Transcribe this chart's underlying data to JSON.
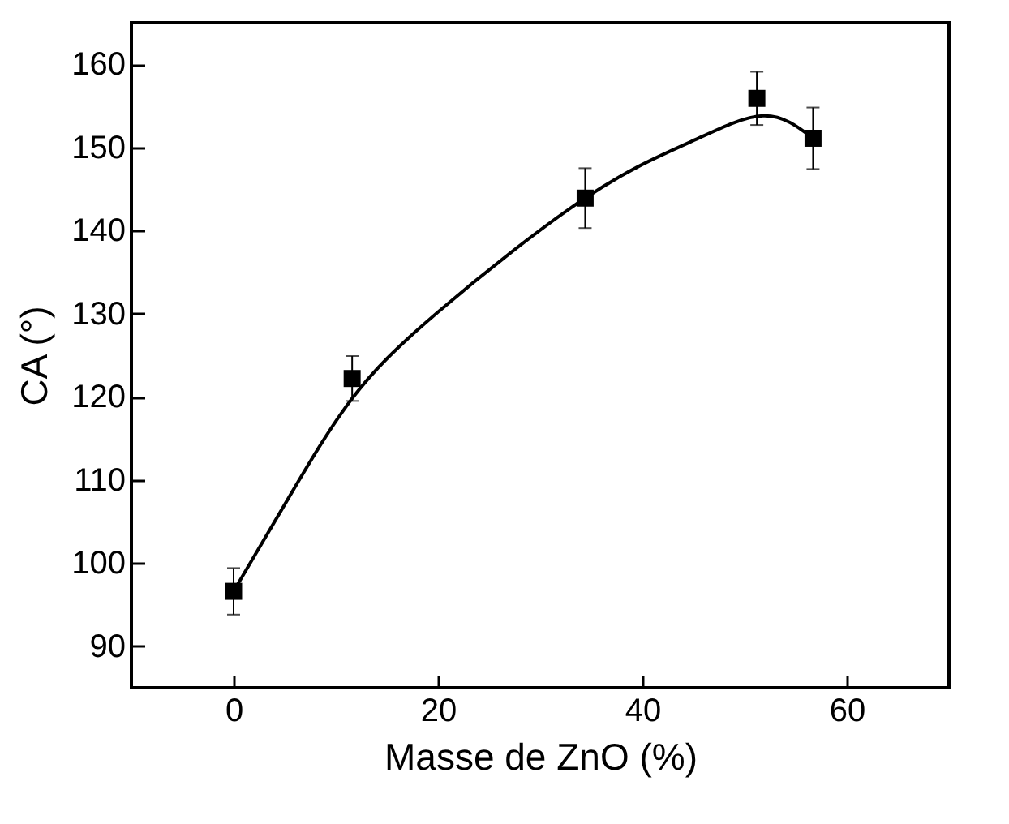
{
  "chart_data": {
    "type": "scatter",
    "xlabel": "Masse de ZnO (%)",
    "ylabel": "CA (°)",
    "xlim": [
      -10,
      70
    ],
    "xticks": [
      0,
      20,
      40,
      60
    ],
    "ylim": [
      85,
      165
    ],
    "yticks": [
      90,
      100,
      110,
      120,
      130,
      140,
      150,
      160
    ],
    "grid": false,
    "series": [
      {
        "type": "scatter",
        "color": "#000000",
        "marker": "square",
        "x": [
          0,
          11.6,
          34.4,
          51.2,
          56.7
        ],
        "values": [
          96.6,
          122.2,
          143.9,
          155.9,
          151.1
        ],
        "errors": [
          2.8,
          2.7,
          3.6,
          3.2,
          3.7
        ]
      },
      {
        "type": "line",
        "color": "#000000",
        "line_style": "solid",
        "x": [
          0,
          5.7,
          11.6,
          20,
          34.4,
          44.6,
          51.8,
          56.7
        ],
        "values": [
          96.6,
          108.5,
          119.8,
          130.2,
          143.9,
          150.6,
          153.8,
          151.1
        ]
      }
    ]
  }
}
